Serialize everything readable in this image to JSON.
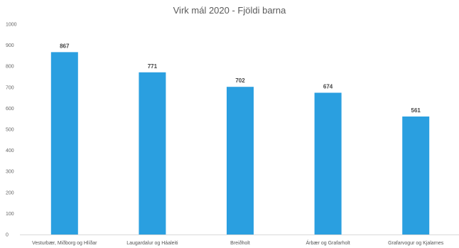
{
  "chart_data": {
    "type": "bar",
    "title": "Virk mál 2020 - Fjöldi barna",
    "categories": [
      "Vesturbær, Miðborg og Hlíðar",
      "Laugardalur og Háaleiti",
      "Breiðholt",
      "Árbær og Grafarholt",
      "Grafarvogur og Kjalarnes"
    ],
    "values": [
      867,
      771,
      702,
      674,
      561
    ],
    "data_labels": [
      "867",
      "771",
      "702",
      "674",
      "561"
    ],
    "ylim": [
      0,
      1000
    ],
    "yticks": [
      0,
      100,
      200,
      300,
      400,
      500,
      600,
      700,
      800,
      900,
      1000
    ],
    "ytick_labels": [
      "0",
      "100",
      "200",
      "300",
      "400",
      "500",
      "600",
      "700",
      "800",
      "900",
      "1000"
    ],
    "xlabel": "",
    "ylabel": "",
    "grid": false,
    "legend": "none",
    "bar_color": "#2a9fe0"
  }
}
